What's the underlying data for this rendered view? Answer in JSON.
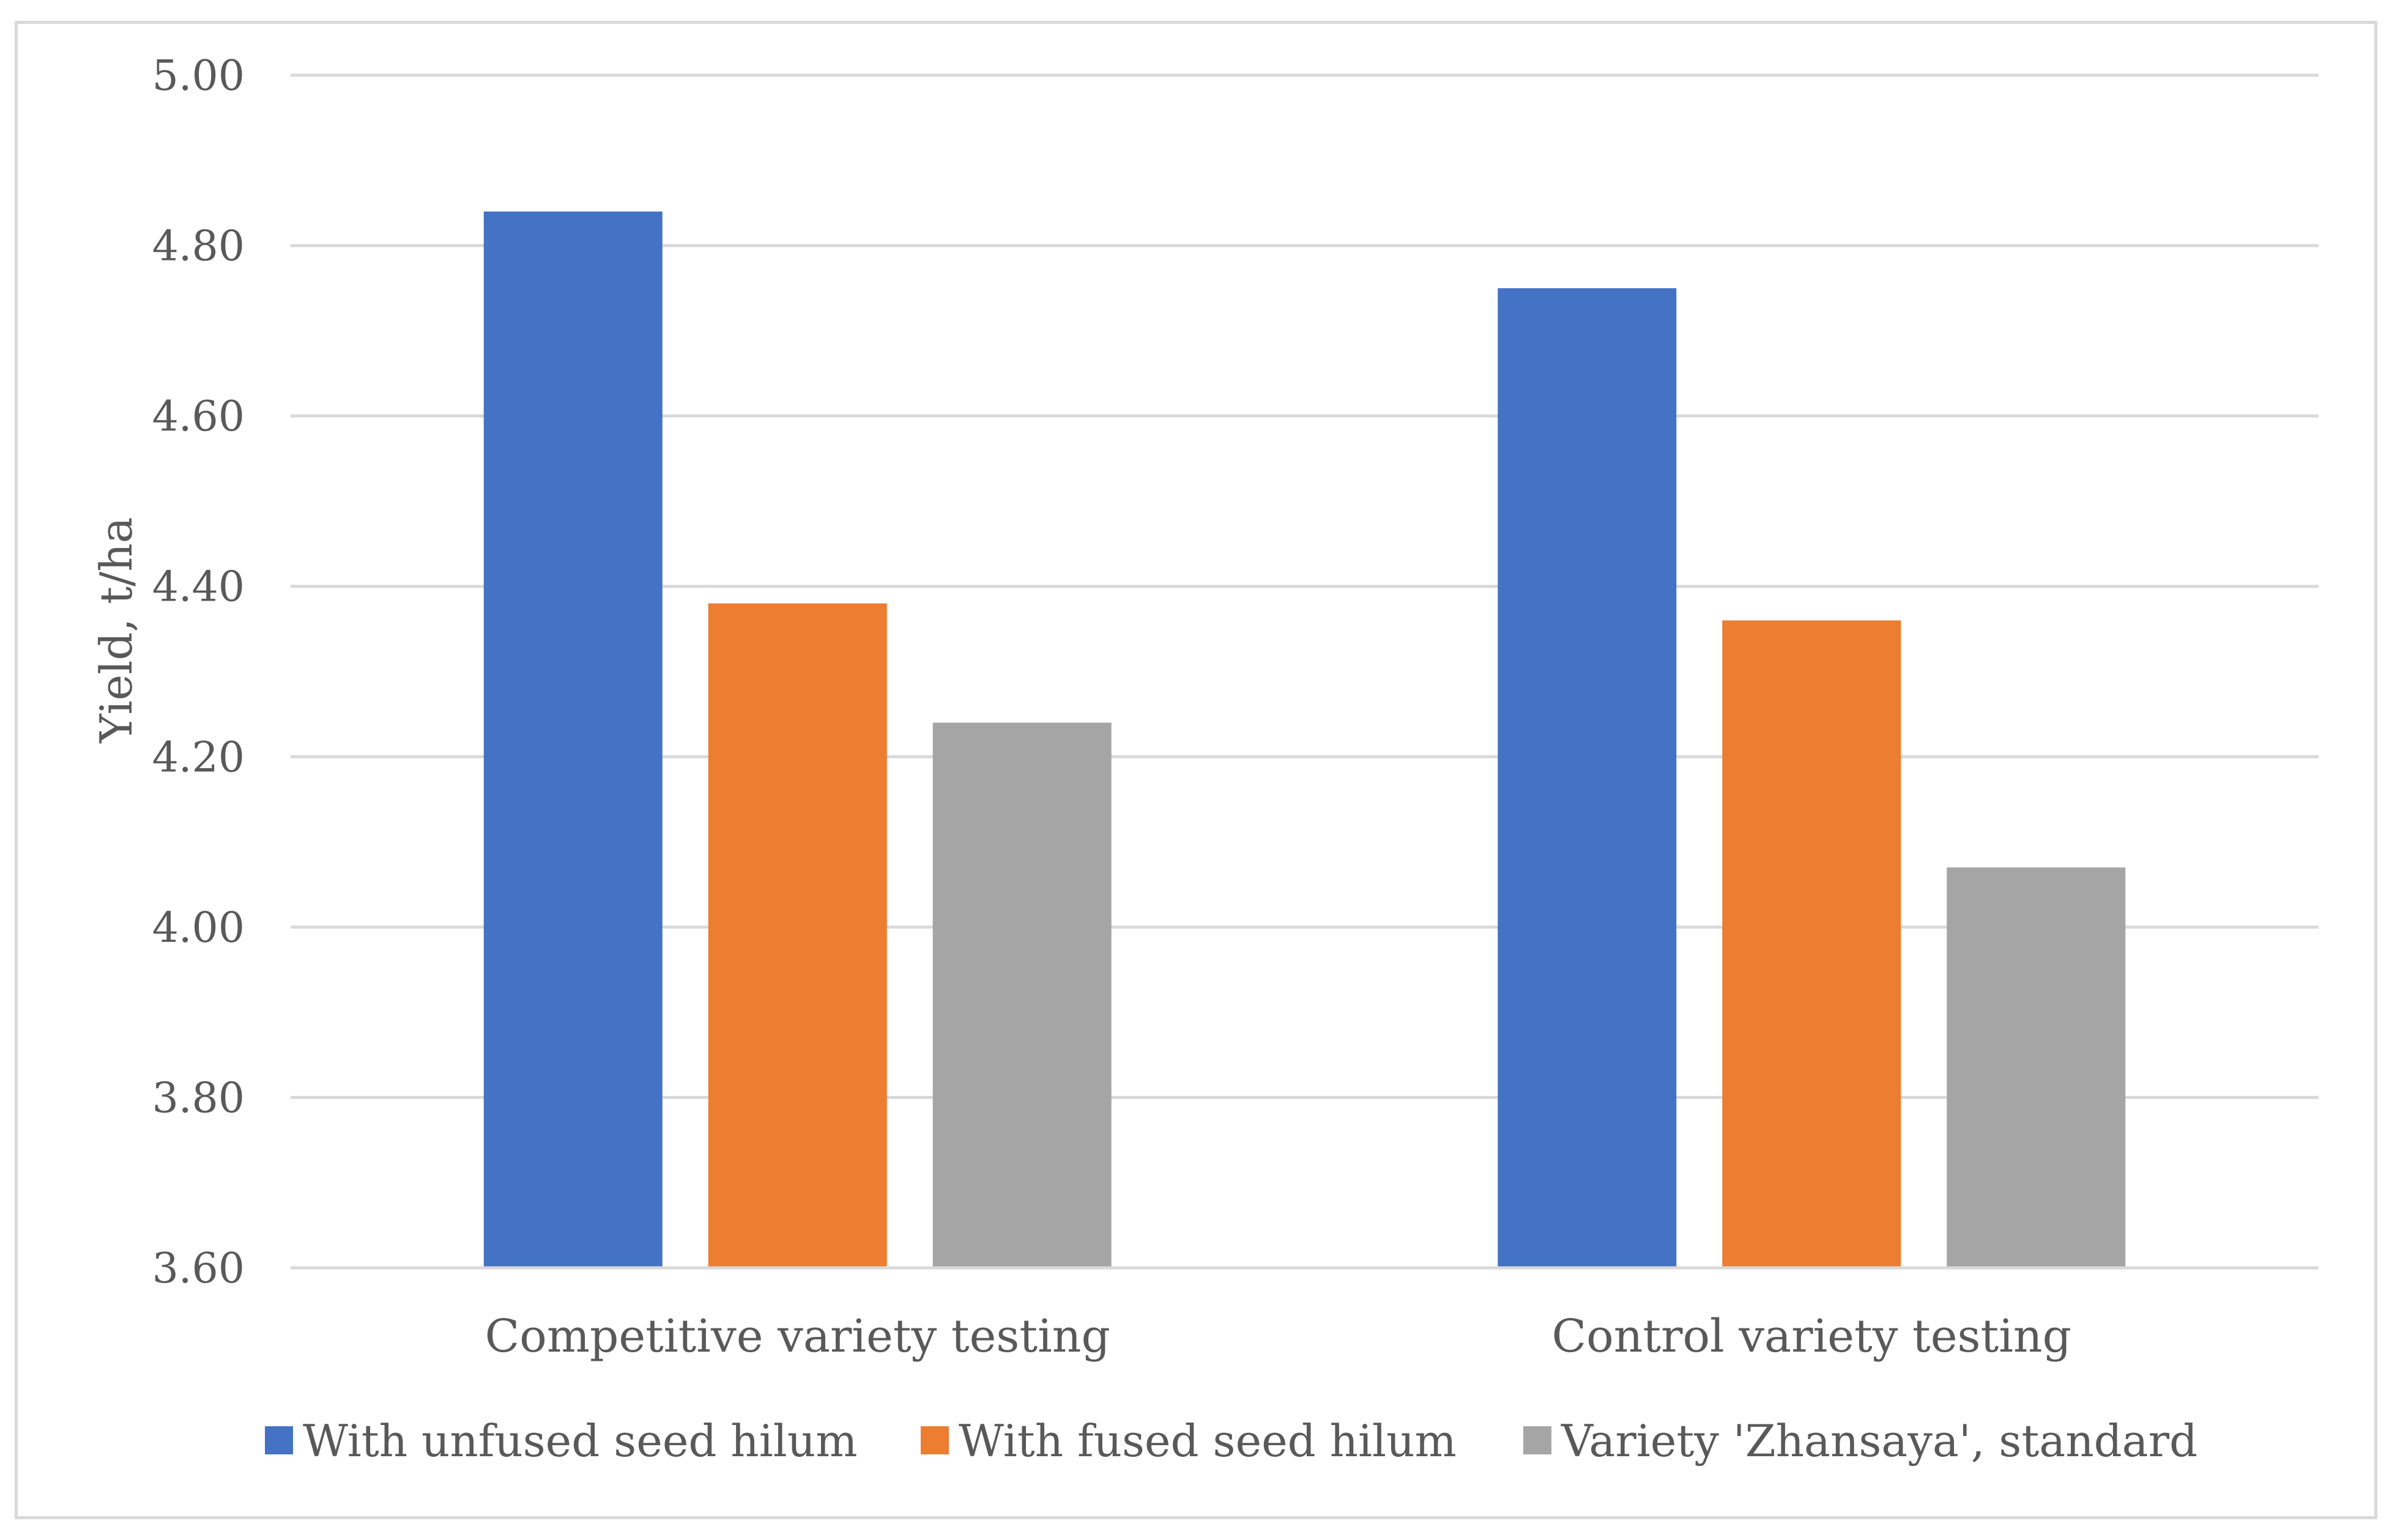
{
  "chart_data": {
    "type": "bar",
    "title": "",
    "xlabel": "",
    "ylabel": "Yield, t/ha",
    "ylim": [
      3.6,
      5.0
    ],
    "yticks": [
      "3.60",
      "3.80",
      "4.00",
      "4.20",
      "4.40",
      "4.60",
      "4.80",
      "5.00"
    ],
    "grid": true,
    "legend_position": "bottom",
    "categories": [
      "Competitive variety testing",
      "Control variety testing"
    ],
    "series": [
      {
        "name": "With unfused seed hilum",
        "color": "#4472c4",
        "values": [
          4.84,
          4.75
        ]
      },
      {
        "name": "With fused seed hilum",
        "color": "#ed7d31",
        "values": [
          4.38,
          4.36
        ]
      },
      {
        "name": "Variety 'Zhansaya', standard",
        "color": "#a5a5a5",
        "values": [
          4.24,
          4.07
        ]
      }
    ]
  }
}
